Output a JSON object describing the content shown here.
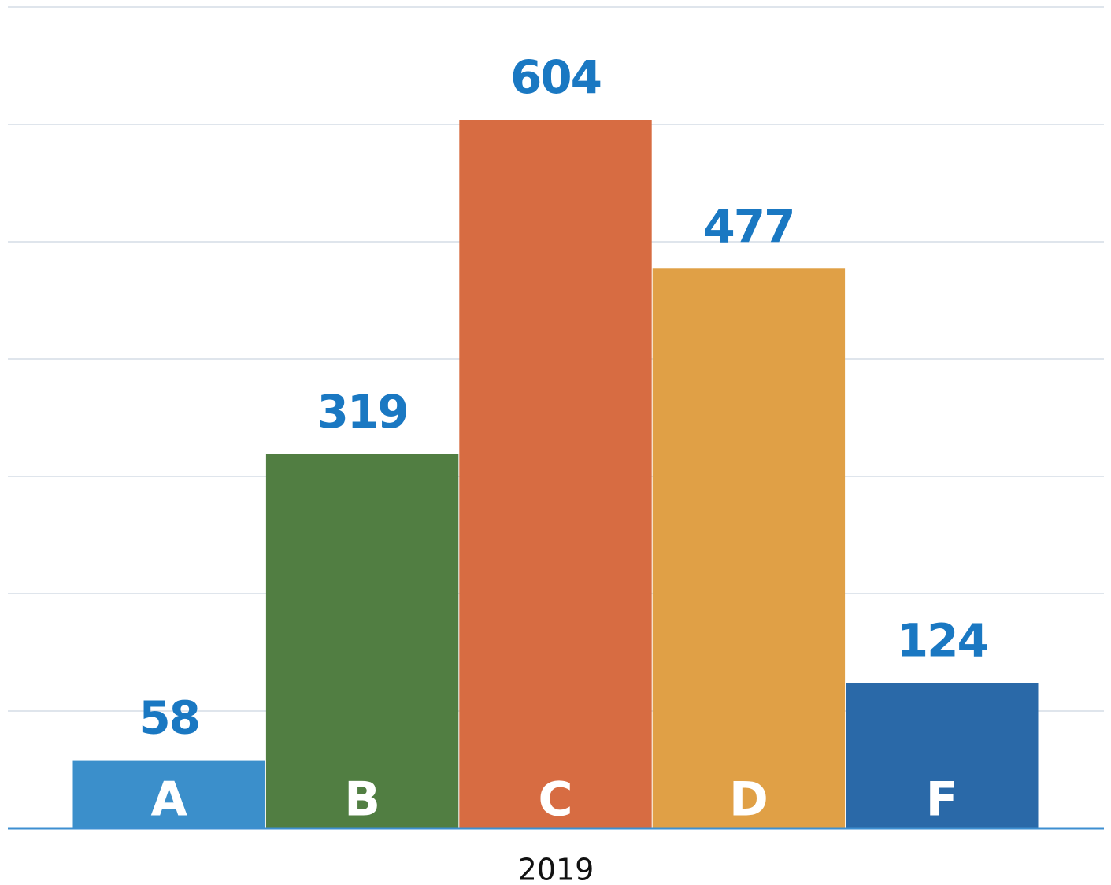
{
  "chart_data": {
    "type": "bar",
    "x_label": "2019",
    "categories": [
      "A",
      "B",
      "C",
      "D",
      "F"
    ],
    "values": [
      58,
      319,
      604,
      477,
      124
    ],
    "colors": [
      "#3b8fcb",
      "#517e42",
      "#d76c42",
      "#e0a046",
      "#2a69a8"
    ],
    "ylim": [
      0,
      700
    ],
    "yticks": [
      0,
      100,
      200,
      300,
      400,
      500,
      600,
      700
    ],
    "grid": true
  }
}
